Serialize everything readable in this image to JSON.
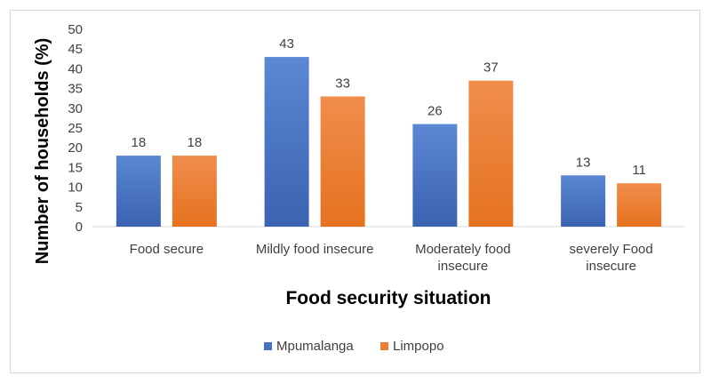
{
  "chart_data": {
    "type": "bar",
    "title": "",
    "categories": [
      [
        "Food secure"
      ],
      [
        "Mildly food insecure"
      ],
      [
        "Moderately food",
        "insecure"
      ],
      [
        "severely Food",
        "insecure"
      ]
    ],
    "series": [
      {
        "name": "Mpumalanga",
        "values": [
          18,
          43,
          26,
          13
        ],
        "color": "#4472c4"
      },
      {
        "name": "Limpopo",
        "values": [
          18,
          33,
          37,
          11
        ],
        "color": "#ed7d31"
      }
    ],
    "xlabel": "Food security situation",
    "ylabel": "Number of households (%)",
    "ylim": [
      0,
      50
    ],
    "yticks": [
      0,
      5,
      10,
      15,
      20,
      25,
      30,
      35,
      40,
      45,
      50
    ],
    "grid": false,
    "legend": "bottom"
  }
}
